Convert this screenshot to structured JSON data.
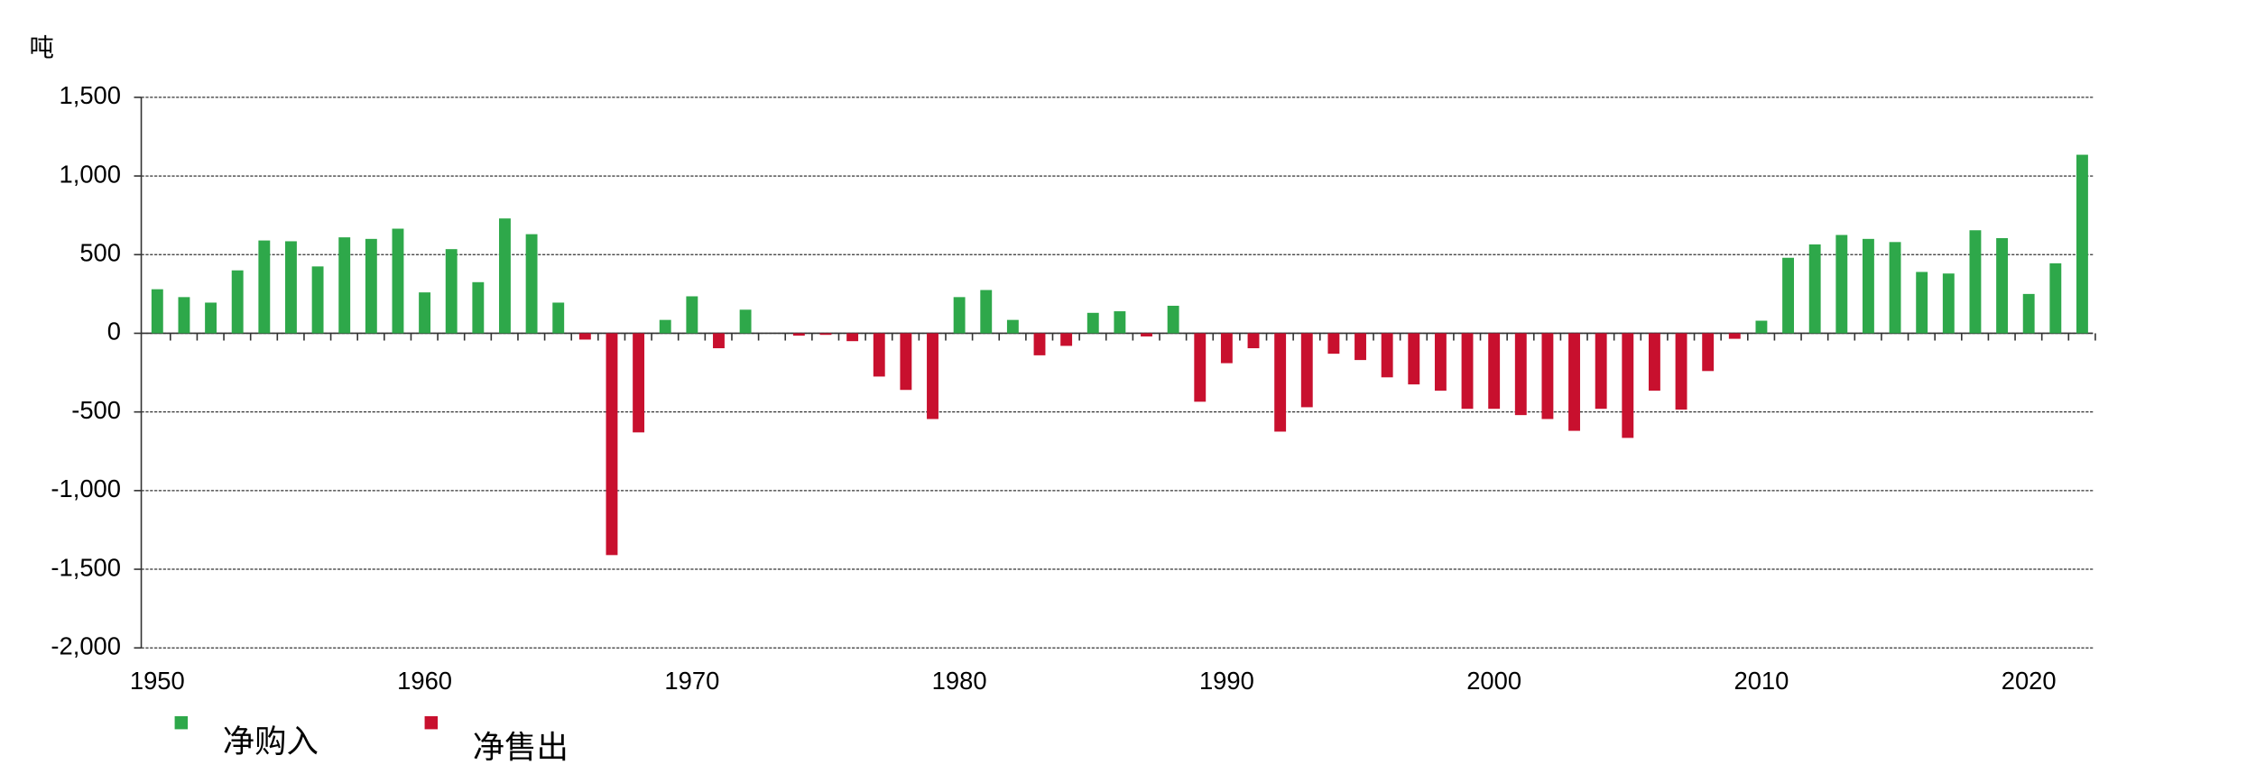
{
  "chart_data": {
    "type": "bar",
    "y_label": "吨",
    "x": [
      1950,
      1951,
      1952,
      1953,
      1954,
      1955,
      1956,
      1957,
      1958,
      1959,
      1960,
      1961,
      1962,
      1963,
      1964,
      1965,
      1966,
      1967,
      1968,
      1969,
      1970,
      1971,
      1972,
      1973,
      1974,
      1975,
      1976,
      1977,
      1978,
      1979,
      1980,
      1981,
      1982,
      1983,
      1984,
      1985,
      1986,
      1987,
      1988,
      1989,
      1990,
      1991,
      1992,
      1993,
      1994,
      1995,
      1996,
      1997,
      1998,
      1999,
      2000,
      2001,
      2002,
      2003,
      2004,
      2005,
      2006,
      2007,
      2008,
      2009,
      2010,
      2011,
      2012,
      2013,
      2014,
      2015,
      2016,
      2017,
      2018,
      2019,
      2020,
      2021,
      2022
    ],
    "series": [
      {
        "name": "净购入",
        "color": "#2ea84a",
        "values": [
          280,
          230,
          195,
          400,
          590,
          585,
          425,
          610,
          600,
          665,
          260,
          535,
          325,
          730,
          630,
          195,
          null,
          null,
          null,
          85,
          235,
          null,
          150,
          null,
          null,
          null,
          null,
          null,
          null,
          null,
          230,
          275,
          85,
          null,
          null,
          130,
          140,
          null,
          175,
          null,
          null,
          null,
          null,
          null,
          null,
          null,
          null,
          null,
          null,
          null,
          null,
          null,
          null,
          null,
          null,
          null,
          null,
          null,
          null,
          null,
          80,
          480,
          565,
          625,
          600,
          580,
          390,
          380,
          655,
          605,
          250,
          445,
          1135
        ]
      },
      {
        "name": "净售出",
        "color": "#c8102e",
        "values": [
          null,
          null,
          null,
          null,
          null,
          null,
          null,
          null,
          null,
          null,
          null,
          null,
          null,
          null,
          null,
          null,
          -40,
          -1410,
          -630,
          null,
          null,
          -95,
          null,
          null,
          -15,
          -10,
          -50,
          -275,
          -360,
          -545,
          null,
          null,
          null,
          -140,
          -80,
          null,
          null,
          -20,
          null,
          -435,
          -190,
          -95,
          -625,
          -470,
          -130,
          -170,
          -280,
          -325,
          -365,
          -480,
          -480,
          -520,
          -545,
          -620,
          -480,
          -665,
          -365,
          -485,
          -240,
          -35,
          null,
          null,
          null,
          null,
          null,
          null,
          null,
          null,
          null,
          null,
          null,
          null,
          null
        ]
      }
    ],
    "xlim": [
      1949.4,
      2022.4
    ],
    "xticks": [
      1950,
      1960,
      1970,
      1980,
      1990,
      2000,
      2010,
      2020
    ],
    "ylim": [
      -2000,
      1500
    ],
    "yticks": [
      {
        "value": -2000,
        "label": "-2,000"
      },
      {
        "value": -1500,
        "label": "-1,500"
      },
      {
        "value": -1000,
        "label": "-1,000"
      },
      -500,
      0,
      500,
      {
        "value": 1000,
        "label": "1,000"
      },
      {
        "value": 1500,
        "label": "1,500"
      }
    ],
    "grid": true
  }
}
